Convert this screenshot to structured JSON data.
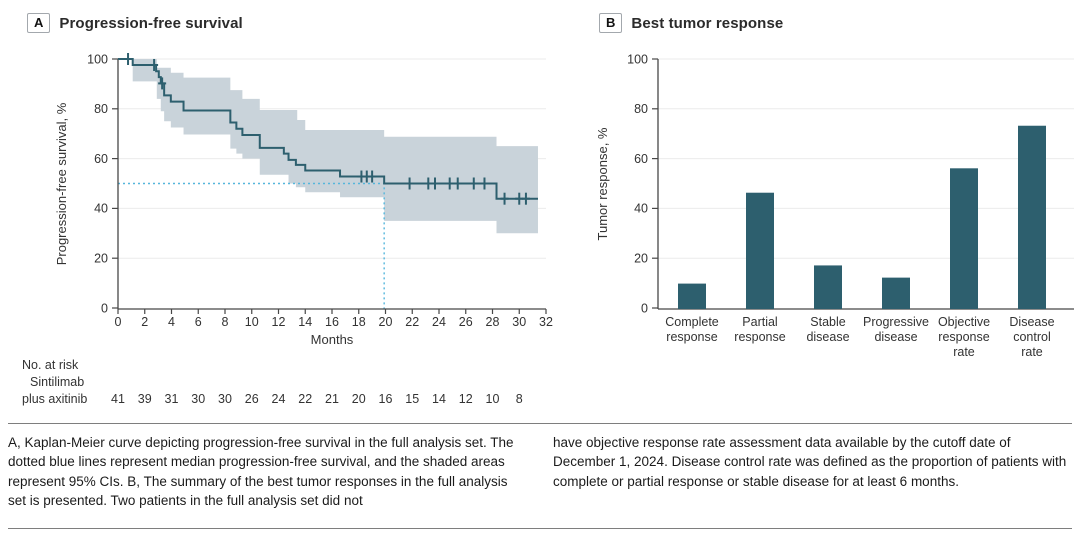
{
  "colors": {
    "curve": "#2d5f6e",
    "band": "#c9d3da",
    "median": "#55b6dc",
    "axis": "#474747",
    "grid": "#ebebeb",
    "text": "#333333"
  },
  "caption": {
    "left": "A, Kaplan-Meier curve depicting progression-free survival in the full analysis set. The dotted blue lines represent median progression-free survival, and the shaded areas represent 95% CIs. B, The summary of the best tumor responses in the full analysis set is presented. Two patients in the full analysis set did not",
    "right": "have objective response rate assessment data available by the cutoff date of December 1, 2024. Disease control rate was defined as the proportion of patients with complete or partial response or stable disease for at least 6 months."
  },
  "chart_data": [
    {
      "type": "line",
      "subtype": "kaplan-meier",
      "panel_label": "A",
      "title": "Progression-free survival",
      "xlabel": "Months",
      "ylabel": "Progression-free survival, %",
      "xlim": [
        0,
        32
      ],
      "ylim": [
        0,
        100
      ],
      "x_ticks": [
        0,
        2,
        4,
        6,
        8,
        10,
        12,
        14,
        16,
        18,
        20,
        22,
        24,
        26,
        28,
        30,
        32
      ],
      "y_ticks": [
        0,
        20,
        40,
        60,
        80,
        100
      ],
      "grid": "horizontal",
      "legend_position": "none",
      "km_steps": [
        [
          0,
          100
        ],
        [
          1.1,
          97.6
        ],
        [
          2.85,
          95.1
        ],
        [
          3.05,
          92.7
        ],
        [
          3.2,
          90.2
        ],
        [
          3.45,
          85.4
        ],
        [
          3.95,
          82.9
        ],
        [
          4.9,
          79.3
        ],
        [
          8.4,
          74.5
        ],
        [
          8.85,
          72.0
        ],
        [
          9.3,
          69.5
        ],
        [
          10.6,
          64.3
        ],
        [
          12.4,
          62.0
        ],
        [
          12.75,
          59.5
        ],
        [
          13.3,
          57.5
        ],
        [
          14.0,
          55.2
        ],
        [
          16.6,
          52.8
        ],
        [
          19.9,
          50.0
        ],
        [
          28.3,
          43.9
        ]
      ],
      "curve_end": 31.4,
      "censor_marks": [
        [
          0.75,
          100
        ],
        [
          2.7,
          97.6
        ],
        [
          3.3,
          90.2
        ],
        [
          18.2,
          52.8
        ],
        [
          18.6,
          52.8
        ],
        [
          19.0,
          52.8
        ],
        [
          21.8,
          50
        ],
        [
          23.2,
          50
        ],
        [
          23.7,
          50
        ],
        [
          24.8,
          50
        ],
        [
          25.4,
          50
        ],
        [
          26.6,
          50
        ],
        [
          27.4,
          50
        ],
        [
          28.9,
          43.9
        ],
        [
          30.0,
          43.9
        ],
        [
          30.5,
          43.9
        ]
      ],
      "ci_upper": [
        [
          1.1,
          100
        ],
        [
          2.9,
          96.5
        ],
        [
          3.95,
          94.5
        ],
        [
          4.9,
          92.5
        ],
        [
          8.4,
          87.5
        ],
        [
          9.3,
          84
        ],
        [
          10.6,
          79.5
        ],
        [
          13.4,
          75.5
        ],
        [
          14,
          71.5
        ],
        [
          19.9,
          68.8
        ],
        [
          28.3,
          65
        ]
      ],
      "ci_lower": [
        [
          1.1,
          91
        ],
        [
          2.9,
          84
        ],
        [
          3.2,
          79
        ],
        [
          3.45,
          75
        ],
        [
          3.95,
          72.5
        ],
        [
          4.9,
          69.7
        ],
        [
          8.4,
          64
        ],
        [
          8.85,
          62
        ],
        [
          9.3,
          60
        ],
        [
          10.6,
          53.5
        ],
        [
          12.75,
          50
        ],
        [
          13.3,
          48.5
        ],
        [
          14,
          46.5
        ],
        [
          16.6,
          44.5
        ],
        [
          19.9,
          35
        ],
        [
          28.3,
          30
        ]
      ],
      "median_pfs": {
        "x": 19.9,
        "y": 50
      },
      "at_risk": {
        "header": "No. at risk",
        "group": [
          "Sintilimab",
          "plus axitinib"
        ],
        "times": [
          0,
          2,
          4,
          6,
          8,
          10,
          12,
          14,
          16,
          18,
          20,
          22,
          24,
          26,
          28,
          30
        ],
        "values": [
          41,
          39,
          31,
          30,
          30,
          26,
          24,
          22,
          21,
          20,
          16,
          15,
          14,
          12,
          10,
          8
        ]
      }
    },
    {
      "type": "bar",
      "panel_label": "B",
      "title": "Best tumor response",
      "xlabel": "",
      "ylabel": "Tumor response, %",
      "ylim": [
        0,
        100
      ],
      "y_ticks": [
        0,
        20,
        40,
        60,
        80,
        100
      ],
      "grid": "horizontal",
      "categories": [
        "Complete response",
        "Partial response",
        "Stable disease",
        "Progressive disease",
        "Objective response rate",
        "Disease control rate"
      ],
      "category_lines": [
        [
          "Complete",
          "response"
        ],
        [
          "Partial",
          "response"
        ],
        [
          "Stable",
          "disease"
        ],
        [
          "Progressive",
          "disease"
        ],
        [
          "Objective",
          "response",
          "rate"
        ],
        [
          "Disease",
          "control",
          "rate"
        ]
      ],
      "values": [
        9.8,
        46.3,
        17.1,
        12.2,
        56.1,
        73.2
      ]
    }
  ]
}
